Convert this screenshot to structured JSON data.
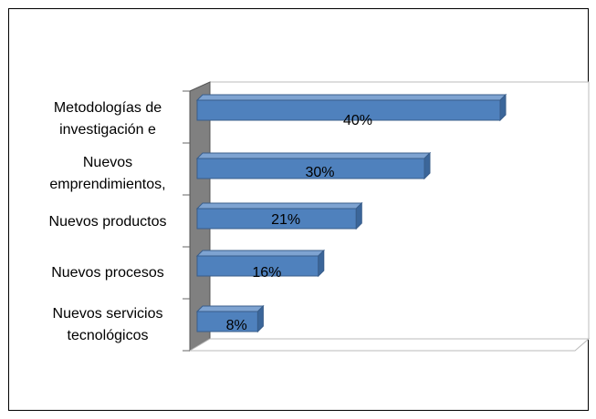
{
  "chart_data": {
    "type": "bar",
    "orientation": "horizontal",
    "categories": [
      "Metodologías de\ninvestigación e",
      "Nuevos\nemprendimientos,",
      "Nuevos productos",
      "Nuevos procesos",
      "Nuevos servicios\ntecnológicos"
    ],
    "values": [
      40,
      30,
      21,
      16,
      8
    ],
    "value_labels": [
      "40%",
      "30%",
      "21%",
      "16%",
      "8%"
    ],
    "color": "#4f81bd"
  }
}
